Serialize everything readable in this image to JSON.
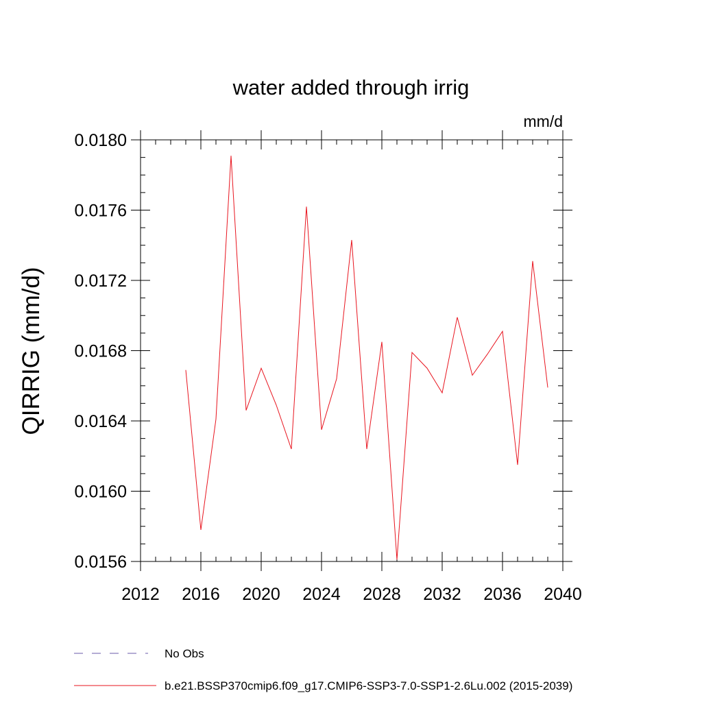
{
  "chart_data": {
    "type": "line",
    "title": "water added through irrig",
    "units": "mm/d",
    "xlabel": "",
    "ylabel": "QIRRIG  (mm/d)",
    "xlim": [
      2012,
      2040
    ],
    "ylim": [
      0.0156,
      0.018
    ],
    "xticks": [
      2012,
      2016,
      2020,
      2024,
      2028,
      2032,
      2036,
      2040
    ],
    "xtick_labels": [
      "2012",
      "2016",
      "2020",
      "2024",
      "2028",
      "2032",
      "2036",
      "2040"
    ],
    "yticks": [
      0.0156,
      0.016,
      0.0164,
      0.0168,
      0.0172,
      0.0176,
      0.018
    ],
    "ytick_labels": [
      "0.0156",
      "0.0160",
      "0.0164",
      "0.0168",
      "0.0172",
      "0.0176",
      "0.0180"
    ],
    "grid": false,
    "legend_placement": "bottom",
    "series": [
      {
        "name": "b.e21.BSSP370cmip6.f09_g17.CMIP6-SSP3-7.0-SSP1-2.6Lu.002 (2015-2039)",
        "color": "#e8141e",
        "style": "solid",
        "x": [
          2015,
          2016,
          2017,
          2018,
          2019,
          2020,
          2021,
          2022,
          2023,
          2024,
          2025,
          2026,
          2027,
          2028,
          2029,
          2030,
          2031,
          2032,
          2033,
          2034,
          2035,
          2036,
          2037,
          2038,
          2039
        ],
        "y": [
          0.01669,
          0.01578,
          0.01641,
          0.01791,
          0.01646,
          0.0167,
          0.01649,
          0.01624,
          0.01762,
          0.01635,
          0.01664,
          0.01743,
          0.01624,
          0.01685,
          0.01561,
          0.01679,
          0.0167,
          0.01656,
          0.01699,
          0.01666,
          0.01678,
          0.01691,
          0.01615,
          0.01731,
          0.01659
        ]
      }
    ],
    "legend": [
      {
        "label": "No Obs",
        "color": "#6a5aa8",
        "style": "dashed"
      },
      {
        "label": "b.e21.BSSP370cmip6.f09_g17.CMIP6-SSP3-7.0-SSP1-2.6Lu.002 (2015-2039)",
        "color": "#e8141e",
        "style": "solid"
      }
    ]
  }
}
